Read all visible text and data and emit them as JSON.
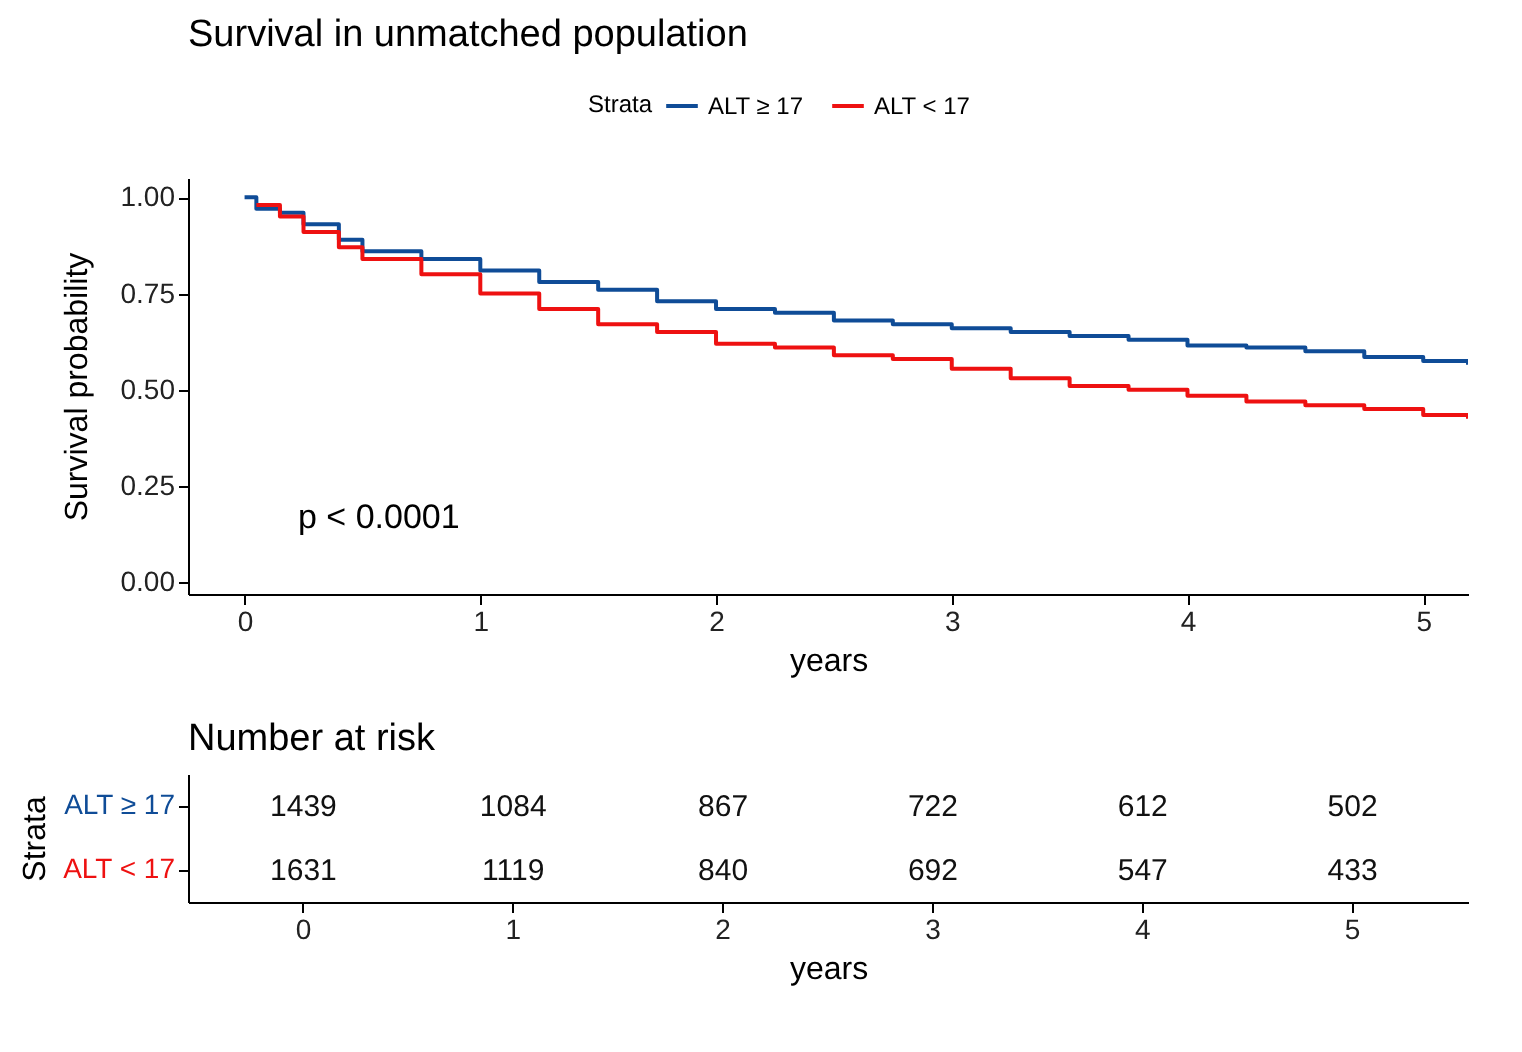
{
  "chart_data": [
    {
      "type": "step",
      "title": "Survival in unmatched population",
      "xlabel": "years",
      "ylabel": "Survival probability",
      "legend_title": "Strata",
      "legend": "top",
      "x": [
        0,
        0.05,
        0.15,
        0.25,
        0.4,
        0.5,
        0.75,
        1,
        1.25,
        1.5,
        1.75,
        2,
        2.25,
        2.5,
        2.75,
        3,
        3.25,
        3.5,
        3.75,
        4,
        4.25,
        4.5,
        4.75,
        5,
        5.19
      ],
      "series": [
        {
          "name": "ALT ≥ 17",
          "color": "#0f4c97",
          "values": [
            1.0,
            0.97,
            0.96,
            0.93,
            0.89,
            0.86,
            0.84,
            0.81,
            0.78,
            0.76,
            0.73,
            0.71,
            0.7,
            0.68,
            0.67,
            0.66,
            0.65,
            0.64,
            0.63,
            0.615,
            0.61,
            0.6,
            0.585,
            0.575,
            0.565
          ]
        },
        {
          "name": "ALT < 17",
          "color": "#ee1111",
          "values": [
            null,
            0.98,
            0.95,
            0.91,
            0.87,
            0.84,
            0.8,
            0.75,
            0.71,
            0.67,
            0.65,
            0.62,
            0.61,
            0.59,
            0.58,
            0.555,
            0.53,
            0.51,
            0.5,
            0.485,
            0.47,
            0.46,
            0.45,
            0.435,
            0.425
          ]
        }
      ],
      "xlim": [
        -0.24,
        5.19
      ],
      "xticks": [
        0,
        1,
        2,
        3,
        4,
        5
      ],
      "ylim": [
        -0.03,
        1.05
      ],
      "yticks": [
        {
          "value": 0,
          "label": "0.00"
        },
        {
          "value": 0.25,
          "label": "0.25"
        },
        {
          "value": 0.5,
          "label": "0.50"
        },
        {
          "value": 0.75,
          "label": "0.75"
        },
        {
          "value": 1,
          "label": "1.00"
        }
      ],
      "annotations": [
        "p < 0.0001"
      ],
      "grid": false,
      "marker": "none",
      "line_style": "solid"
    },
    {
      "type": "heatmap",
      "title": "Number at risk",
      "xlabel": "years",
      "ylabel": "Strata",
      "categories": [
        "0",
        "1",
        "2",
        "3",
        "4",
        "5"
      ],
      "y_categories": [
        "ALT ≥ 17",
        "ALT < 17"
      ],
      "cells": [
        [
          1439,
          1084,
          867,
          722,
          612,
          502
        ],
        [
          1631,
          1119,
          840,
          692,
          547,
          433
        ]
      ],
      "data_labels": true
    }
  ]
}
